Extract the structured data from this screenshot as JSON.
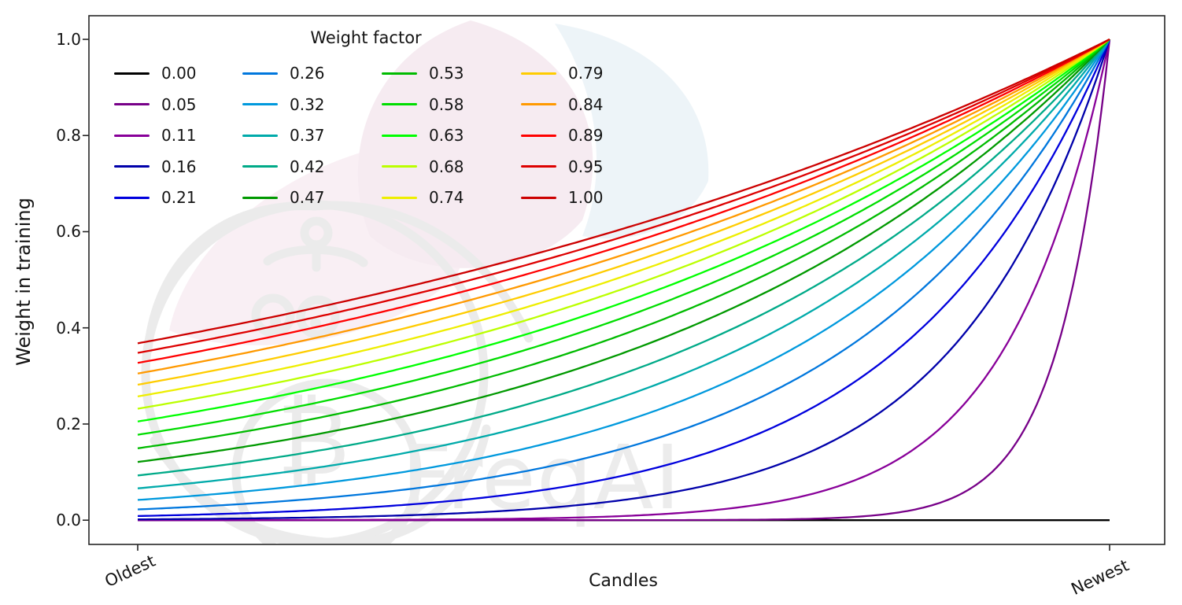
{
  "figure": {
    "background": "#ffffff",
    "frame_color": "#262626",
    "text_color": "#141414"
  },
  "axes": {
    "xlabel": "Candles",
    "ylabel": "Weight in training",
    "y_ticks": [
      "1.0",
      "0.8",
      "0.6",
      "0.4",
      "0.2",
      "0.0"
    ],
    "x_ticks": [
      "Oldest",
      "Newest"
    ],
    "grid": false
  },
  "legend": {
    "title": "Weight factor",
    "position": "upper left",
    "columns": 4,
    "entries": [
      {
        "label": "0.00",
        "color": "#000000"
      },
      {
        "label": "0.05",
        "color": "#770088"
      },
      {
        "label": "0.11",
        "color": "#880099"
      },
      {
        "label": "0.16",
        "color": "#0000AA"
      },
      {
        "label": "0.21",
        "color": "#0000DD"
      },
      {
        "label": "0.26",
        "color": "#0077DD"
      },
      {
        "label": "0.32",
        "color": "#0099DD"
      },
      {
        "label": "0.37",
        "color": "#00AAAA"
      },
      {
        "label": "0.42",
        "color": "#00AA88"
      },
      {
        "label": "0.47",
        "color": "#009900"
      },
      {
        "label": "0.53",
        "color": "#00BB00"
      },
      {
        "label": "0.58",
        "color": "#00DD00"
      },
      {
        "label": "0.63",
        "color": "#00FF00"
      },
      {
        "label": "0.68",
        "color": "#BBFF00"
      },
      {
        "label": "0.74",
        "color": "#EEEE00"
      },
      {
        "label": "0.79",
        "color": "#FFCC00"
      },
      {
        "label": "0.84",
        "color": "#FF9900"
      },
      {
        "label": "0.89",
        "color": "#FF0000"
      },
      {
        "label": "0.95",
        "color": "#DD0000"
      },
      {
        "label": "1.00",
        "color": "#CC0000"
      }
    ]
  },
  "watermark": {
    "text": "FreqAI",
    "coin_symbol": "₿",
    "logo": "freqtrade-robot-logo",
    "colors": {
      "logo_gray": "#ebebeb",
      "text_gray": "#ececec",
      "petal_pink": "#f6ebf1",
      "petal_pink_light": "#f9eff4",
      "petal_blue": "#edf4f8"
    }
  },
  "chart_data": {
    "type": "line",
    "title": "",
    "xlabel": "Candles",
    "ylabel": "Weight in training",
    "legend_title": "Weight factor",
    "x_domain": [
      0,
      1
    ],
    "x_range_labels": [
      "Oldest",
      "Newest"
    ],
    "ylim": [
      0,
      1
    ],
    "grid": false,
    "formula": "weight(x) = exp(-(1 - x) / weight_factor); weight_factor = 0 gives a flat line at 0",
    "sample_x": [
      0,
      0.25,
      0.5,
      0.75,
      1.0
    ],
    "series": [
      {
        "name": "0.00",
        "weight_factor": 0.0,
        "color": "#000000",
        "y_samples": [
          0.0,
          0.0,
          0.0,
          0.0,
          0.0
        ]
      },
      {
        "name": "0.05",
        "weight_factor": 0.0526,
        "color": "#770088",
        "y_samples": [
          0.0,
          0.0,
          0.0001,
          0.0087,
          1.0
        ]
      },
      {
        "name": "0.11",
        "weight_factor": 0.1053,
        "color": "#880099",
        "y_samples": [
          0.0001,
          0.0008,
          0.0087,
          0.0934,
          1.0
        ]
      },
      {
        "name": "0.16",
        "weight_factor": 0.1579,
        "color": "#0000AA",
        "y_samples": [
          0.0018,
          0.0087,
          0.0421,
          0.2053,
          1.0
        ]
      },
      {
        "name": "0.21",
        "weight_factor": 0.2105,
        "color": "#0000DD",
        "y_samples": [
          0.0087,
          0.0284,
          0.093,
          0.305,
          1.0
        ]
      },
      {
        "name": "0.26",
        "weight_factor": 0.2632,
        "color": "#0077DD",
        "y_samples": [
          0.0224,
          0.0578,
          0.1496,
          0.3867,
          1.0
        ]
      },
      {
        "name": "0.32",
        "weight_factor": 0.3158,
        "color": "#0099DD",
        "y_samples": [
          0.0421,
          0.093,
          0.2053,
          0.4531,
          1.0
        ]
      },
      {
        "name": "0.37",
        "weight_factor": 0.3684,
        "color": "#00AAAA",
        "y_samples": [
          0.0663,
          0.1306,
          0.2574,
          0.5073,
          1.0
        ]
      },
      {
        "name": "0.42",
        "weight_factor": 0.4211,
        "color": "#00AA88",
        "y_samples": [
          0.093,
          0.1684,
          0.305,
          0.5522,
          1.0
        ]
      },
      {
        "name": "0.47",
        "weight_factor": 0.4737,
        "color": "#009900",
        "y_samples": [
          0.1211,
          0.2053,
          0.348,
          0.59,
          1.0
        ]
      },
      {
        "name": "0.53",
        "weight_factor": 0.5263,
        "color": "#00BB00",
        "y_samples": [
          0.1496,
          0.2405,
          0.3867,
          0.6219,
          1.0
        ]
      },
      {
        "name": "0.58",
        "weight_factor": 0.5789,
        "color": "#00DD00",
        "y_samples": [
          0.1778,
          0.2738,
          0.4216,
          0.6493,
          1.0
        ]
      },
      {
        "name": "0.63",
        "weight_factor": 0.6316,
        "color": "#00FF00",
        "y_samples": [
          0.2053,
          0.305,
          0.4531,
          0.6731,
          1.0
        ]
      },
      {
        "name": "0.68",
        "weight_factor": 0.6842,
        "color": "#BBFF00",
        "y_samples": [
          0.2318,
          0.3341,
          0.4815,
          0.6939,
          1.0
        ]
      },
      {
        "name": "0.74",
        "weight_factor": 0.7368,
        "color": "#EEEE00",
        "y_samples": [
          0.2574,
          0.3614,
          0.5073,
          0.7123,
          1.0
        ]
      },
      {
        "name": "0.79",
        "weight_factor": 0.7895,
        "color": "#FFCC00",
        "y_samples": [
          0.2817,
          0.3867,
          0.5308,
          0.7286,
          1.0
        ]
      },
      {
        "name": "0.84",
        "weight_factor": 0.8421,
        "color": "#FF9900",
        "y_samples": [
          0.305,
          0.4104,
          0.5522,
          0.7431,
          1.0
        ]
      },
      {
        "name": "0.89",
        "weight_factor": 0.8947,
        "color": "#FF0000",
        "y_samples": [
          0.327,
          0.4325,
          0.5719,
          0.7562,
          1.0
        ]
      },
      {
        "name": "0.95",
        "weight_factor": 0.9474,
        "color": "#DD0000",
        "y_samples": [
          0.348,
          0.4531,
          0.59,
          0.7681,
          1.0
        ]
      },
      {
        "name": "1.00",
        "weight_factor": 1.0,
        "color": "#CC0000",
        "y_samples": [
          0.3679,
          0.4724,
          0.6065,
          0.7788,
          1.0
        ]
      }
    ]
  }
}
